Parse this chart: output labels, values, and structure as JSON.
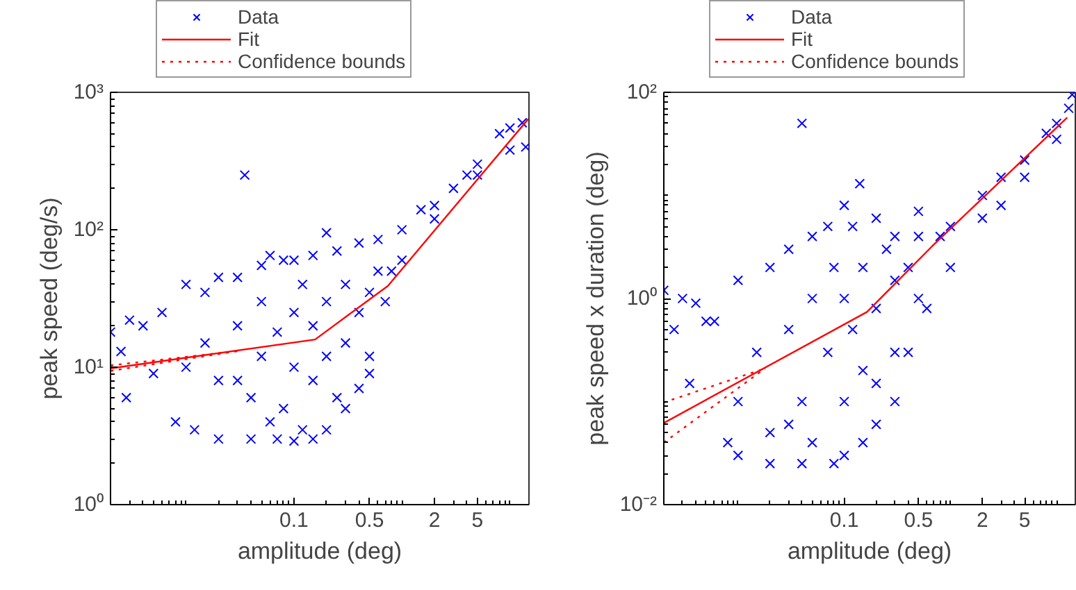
{
  "chart_data": [
    {
      "type": "scatter",
      "xlabel": "amplitude (deg)",
      "ylabel": "peak speed (deg/s)",
      "log": "xy",
      "grid": false,
      "legend": "top",
      "xlim": [
        0.002,
        15
      ],
      "ylim": [
        1,
        1000
      ],
      "xticks": [
        0.1,
        0.5,
        2,
        5
      ],
      "yticks": [
        {
          "value": 1,
          "label": "10⁰"
        },
        {
          "value": 10,
          "label": "10¹"
        },
        {
          "value": 100,
          "label": "10²"
        },
        {
          "value": 1000,
          "label": "10³"
        }
      ],
      "series": [
        {
          "name": "Data",
          "marker": "cross",
          "color": "#0000ff",
          "x": [
            0.002,
            0.0025,
            0.003,
            0.0028,
            0.004,
            0.005,
            0.006,
            0.035,
            0.2,
            0.5,
            0.06,
            0.008,
            0.012,
            0.02,
            0.04,
            0.07,
            0.1,
            0.15,
            0.2,
            0.3,
            0.4,
            0.5,
            0.7,
            1,
            2,
            5,
            10,
            14,
            0.01,
            0.015,
            0.02,
            0.03,
            0.05,
            0.08,
            0.1,
            0.15,
            0.25,
            0.4,
            0.6,
            1,
            1.5,
            2,
            3,
            4,
            5,
            8,
            10,
            13,
            0.01,
            0.015,
            0.02,
            0.03,
            0.04,
            0.05,
            0.05,
            0.07,
            0.08,
            0.1,
            0.1,
            0.12,
            0.15,
            0.15,
            0.2,
            0.2,
            0.3,
            0.3,
            0.4,
            0.5,
            0.6,
            0.8,
            0.03,
            0.06,
            0.12,
            0.25
          ],
          "values": [
            18,
            13,
            22,
            6,
            20,
            9,
            25,
            250,
            95,
            9,
            65,
            4,
            3.5,
            3,
            3,
            3,
            2.9,
            3,
            3.5,
            5,
            7,
            12,
            30,
            60,
            120,
            250,
            380,
            400,
            40,
            35,
            45,
            45,
            55,
            60,
            60,
            65,
            70,
            80,
            85,
            100,
            140,
            150,
            200,
            250,
            300,
            500,
            550,
            600,
            10,
            15,
            8,
            20,
            6,
            12,
            30,
            18,
            5,
            10,
            25,
            40,
            8,
            20,
            12,
            30,
            15,
            40,
            25,
            35,
            50,
            50,
            8,
            4,
            3.5,
            6
          ]
        },
        {
          "name": "Fit",
          "type": "line",
          "color": "#ff0000",
          "line_style": "solid",
          "x": [
            0.002,
            0.157,
            0.74,
            14.8
          ],
          "values": [
            9.8,
            15.9,
            39,
            640
          ]
        },
        {
          "name": "Confidence bounds",
          "type": "line",
          "color": "#ff0000",
          "line_style": "dotted",
          "x": [
            0.002,
            0.03
          ],
          "values": [
            10.3,
            13.1
          ]
        },
        {
          "type": "line",
          "color": "#ff0000",
          "line_style": "dotted",
          "x": [
            0.002,
            0.03
          ],
          "values": [
            9.4,
            13.1
          ]
        }
      ]
    },
    {
      "type": "scatter",
      "xlabel": "amplitude (deg)",
      "ylabel": "peak speed x duration (deg)",
      "log": "xy",
      "grid": false,
      "legend": "top",
      "xlim": [
        0.002,
        15
      ],
      "ylim": [
        0.01,
        100
      ],
      "xticks": [
        0.1,
        0.5,
        2,
        5
      ],
      "yticks": [
        {
          "value": 0.01,
          "label": "10⁻²"
        },
        {
          "value": 1,
          "label": "10⁰"
        },
        {
          "value": 100,
          "label": "10²"
        }
      ],
      "series": [
        {
          "name": "Data",
          "marker": "cross",
          "color": "#0000ff",
          "x": [
            0.002,
            0.0025,
            0.003,
            0.0035,
            0.004,
            0.005,
            0.04,
            0.14,
            0.5,
            14,
            0.008,
            0.01,
            0.02,
            0.04,
            0.08,
            0.1,
            0.15,
            0.2,
            0.3,
            0.4,
            0.6,
            1,
            2,
            3,
            5,
            10,
            0.006,
            0.01,
            0.02,
            0.03,
            0.05,
            0.07,
            0.1,
            0.12,
            0.2,
            0.3,
            0.5,
            0.8,
            1,
            2,
            3,
            5,
            8,
            10,
            13,
            0.01,
            0.015,
            0.02,
            0.03,
            0.04,
            0.05,
            0.05,
            0.07,
            0.08,
            0.1,
            0.1,
            0.12,
            0.15,
            0.15,
            0.2,
            0.2,
            0.25,
            0.3,
            0.3,
            0.4,
            0.5,
            0.03
          ],
          "values": [
            1.2,
            0.5,
            1,
            0.15,
            0.9,
            0.6,
            50,
            13,
            7,
            95,
            0.04,
            0.03,
            0.025,
            0.025,
            0.025,
            0.03,
            0.04,
            0.06,
            0.1,
            0.3,
            0.8,
            2,
            6,
            8,
            15,
            35,
            0.6,
            1.5,
            2,
            3,
            4,
            5,
            8,
            5,
            6,
            4,
            4,
            4,
            5,
            10,
            15,
            22,
            40,
            50,
            70,
            0.1,
            0.3,
            0.05,
            0.5,
            0.1,
            1,
            0.04,
            0.3,
            2,
            0.1,
            1,
            0.5,
            0.2,
            2,
            0.8,
            0.15,
            3,
            1.5,
            0.3,
            2,
            1,
            0.06
          ]
        },
        {
          "name": "Fit",
          "type": "line",
          "color": "#ff0000",
          "line_style": "solid",
          "x": [
            0.002,
            0.164,
            0.67,
            12.6
          ],
          "values": [
            0.062,
            0.74,
            3.2,
            57
          ]
        },
        {
          "name": "Confidence bounds",
          "type": "line",
          "color": "#ff0000",
          "line_style": "dotted",
          "x": [
            0.002,
            0.018
          ],
          "values": [
            0.098,
            0.21
          ]
        },
        {
          "type": "line",
          "color": "#ff0000",
          "line_style": "dotted",
          "x": [
            0.002,
            0.018
          ],
          "values": [
            0.04,
            0.21
          ]
        }
      ]
    }
  ]
}
